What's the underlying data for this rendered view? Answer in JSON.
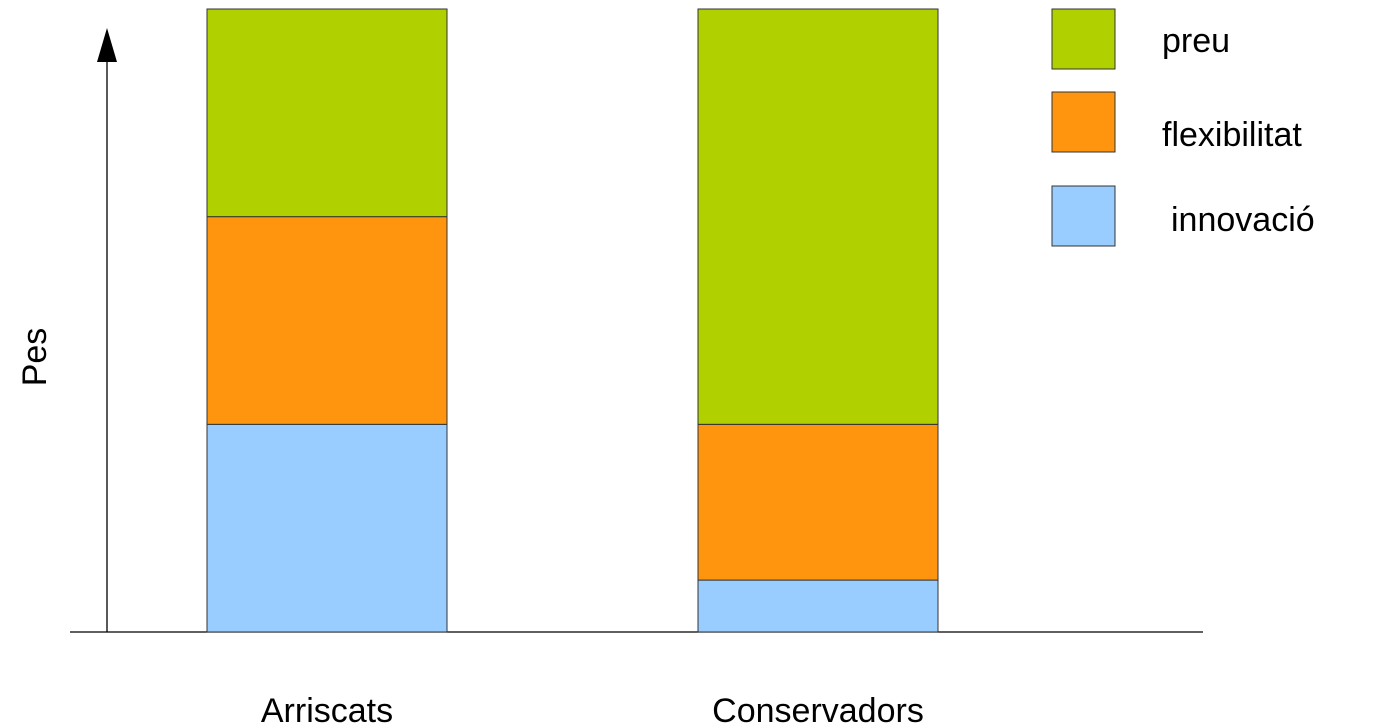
{
  "chart_data": {
    "type": "bar",
    "stacked": true,
    "title": "",
    "xlabel": "",
    "ylabel": "Pes",
    "categories": [
      "Arriscats",
      "Conservadors"
    ],
    "ylim": [
      0,
      6
    ],
    "grid": false,
    "legend_position": "top-right",
    "series": [
      {
        "name": "innovació",
        "color": "#99ccff",
        "values": [
          2,
          0.5
        ]
      },
      {
        "name": "flexibilitat",
        "color": "#ff950e",
        "values": [
          2,
          1.5
        ]
      },
      {
        "name": "preu",
        "color": "#b0d000",
        "values": [
          2,
          4
        ]
      }
    ],
    "legend_order": [
      "preu",
      "flexibilitat",
      "innovació"
    ]
  }
}
